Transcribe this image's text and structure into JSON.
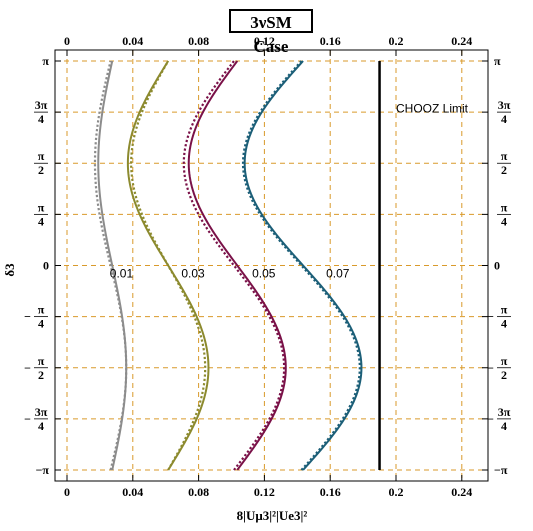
{
  "chart_data": {
    "type": "line",
    "title": "3νSM Case",
    "xlabel": "8|Uμ3|²|Ue3|²",
    "ylabel": "δ3",
    "xlim": [
      0,
      0.25
    ],
    "ylim": [
      -3.14159,
      3.14159
    ],
    "x_ticks": [
      0,
      0.04,
      0.08,
      0.12,
      0.16,
      0.2,
      0.24
    ],
    "x_tick_labels": [
      "0",
      "0.04",
      "0.08",
      "0.12",
      "0.16",
      "0.2",
      "0.24"
    ],
    "y_ticks": [
      {
        "value": 3.14159,
        "label": "π"
      },
      {
        "value": 2.35619,
        "label": "3π/4"
      },
      {
        "value": 1.5708,
        "label": "π/2"
      },
      {
        "value": 0.7854,
        "label": "π/4"
      },
      {
        "value": 0,
        "label": "0"
      },
      {
        "value": -0.7854,
        "label": "−π/4"
      },
      {
        "value": -1.5708,
        "label": "−π/2"
      },
      {
        "value": -2.35619,
        "label": "−3π/4"
      },
      {
        "value": -3.14159,
        "label": "−π"
      }
    ],
    "grid": true,
    "grid_color": "#d99a2b",
    "series": [
      {
        "label": "0.01",
        "color": "#8c8c8c",
        "solid": {
          "center": 0.0275,
          "amp": 0.0085
        },
        "dotted": {
          "center": 0.0265,
          "amp": 0.0095
        },
        "label_at": [
          0.026,
          -0.12
        ]
      },
      {
        "label": "0.03",
        "color": "#8c8a2e",
        "solid": {
          "center": 0.0615,
          "amp": 0.0245
        },
        "dotted": {
          "center": 0.0615,
          "amp": 0.0225
        },
        "label_at": [
          0.0695,
          -0.12
        ]
      },
      {
        "label": "0.05",
        "color": "#7a1148",
        "solid": {
          "center": 0.1035,
          "amp": 0.0295
        },
        "dotted": {
          "center": 0.1015,
          "amp": 0.0305
        },
        "label_at": [
          0.1125,
          -0.12
        ]
      },
      {
        "label": "0.07",
        "color": "#1c5f78",
        "solid": {
          "center": 0.1435,
          "amp": 0.0355
        },
        "dotted": {
          "center": 0.1425,
          "amp": 0.0355
        },
        "label_at": [
          0.1575,
          -0.12
        ]
      }
    ],
    "limit": {
      "x": 0.19,
      "label": "CHOOZ Limit",
      "color": "#000000",
      "label_at": [
        0.2,
        2.35
      ]
    }
  }
}
